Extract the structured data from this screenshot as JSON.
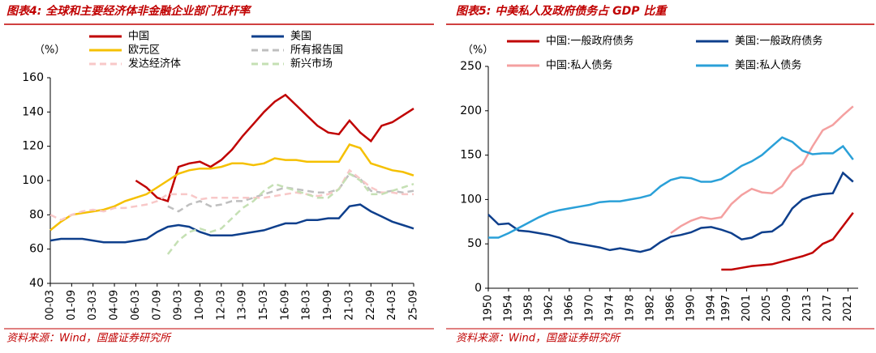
{
  "chart_data": [
    {
      "type": "line",
      "title": "图表4:  全球和主要经济体非金融企业部门杠杆率",
      "y_label": "（%）",
      "source": "资料来源：Wind，国盛证券研究所",
      "categories": [
        "00-03",
        null,
        "01-09",
        null,
        "03-03",
        null,
        "04-09",
        null,
        "06-03",
        null,
        "07-09",
        null,
        "09-03",
        null,
        "10-09",
        null,
        "12-03",
        null,
        "13-09",
        null,
        "15-03",
        null,
        "16-09",
        null,
        "18-03",
        null,
        "19-09",
        null,
        "21-03",
        null,
        "22-09",
        null,
        "24-03",
        null,
        "25-09"
      ],
      "ylim": [
        40,
        160
      ],
      "yticks": [
        40,
        60,
        80,
        100,
        120,
        140,
        160
      ],
      "series": [
        {
          "name": "中国",
          "color": "#c00000",
          "style": "solid",
          "values": [
            null,
            null,
            null,
            null,
            null,
            null,
            null,
            null,
            100,
            96,
            90,
            88,
            108,
            110,
            111,
            108,
            112,
            118,
            126,
            133,
            140,
            146,
            150,
            144,
            138,
            132,
            128,
            127,
            135,
            128,
            123,
            132,
            134,
            138,
            142
          ]
        },
        {
          "name": "美国",
          "color": "#0e3f8c",
          "style": "solid",
          "values": [
            65,
            66,
            66,
            66,
            65,
            64,
            64,
            64,
            65,
            66,
            70,
            73,
            74,
            73,
            70,
            68,
            68,
            68,
            69,
            70,
            71,
            73,
            75,
            75,
            77,
            77,
            78,
            78,
            85,
            86,
            82,
            79,
            76,
            74,
            72
          ]
        },
        {
          "name": "欧元区",
          "color": "#f5c000",
          "style": "solid",
          "values": [
            71,
            76,
            80,
            81,
            82,
            83,
            85,
            88,
            90,
            92,
            96,
            100,
            104,
            106,
            107,
            107,
            108,
            110,
            110,
            109,
            110,
            113,
            112,
            112,
            111,
            111,
            111,
            111,
            121,
            119,
            110,
            108,
            106,
            105,
            103
          ]
        },
        {
          "name": "所有报告国",
          "color": "#bfbfbf",
          "style": "dashed",
          "values": [
            null,
            null,
            null,
            null,
            null,
            null,
            null,
            null,
            null,
            null,
            null,
            85,
            82,
            86,
            88,
            85,
            86,
            88,
            88,
            90,
            92,
            94,
            96,
            95,
            94,
            93,
            93,
            95,
            104,
            101,
            94,
            93,
            94,
            93,
            94
          ]
        },
        {
          "name": "发达经济体",
          "color": "#f8c8c8",
          "style": "dashed",
          "values": [
            80,
            77,
            80,
            82,
            83,
            82,
            84,
            84,
            85,
            86,
            88,
            92,
            92,
            92,
            89,
            90,
            90,
            90,
            90,
            90,
            90,
            91,
            92,
            93,
            92,
            91,
            92,
            95,
            106,
            101,
            96,
            93,
            93,
            92,
            92
          ]
        },
        {
          "name": "新兴市场",
          "color": "#c5e0b4",
          "style": "dashed",
          "values": [
            null,
            null,
            null,
            null,
            null,
            null,
            null,
            null,
            null,
            null,
            null,
            57,
            65,
            70,
            72,
            70,
            72,
            78,
            84,
            88,
            94,
            98,
            96,
            94,
            92,
            90,
            90,
            95,
            104,
            100,
            92,
            92,
            94,
            96,
            98
          ]
        }
      ]
    },
    {
      "type": "line",
      "title": "图表5:  中美私人及政府债务占 GDP 比重",
      "y_label": "（%）",
      "source": "资料来源：Wind，国盛证券研究所",
      "x": [
        1950,
        1952,
        1954,
        1956,
        1958,
        1960,
        1962,
        1964,
        1966,
        1968,
        1970,
        1972,
        1974,
        1976,
        1978,
        1980,
        1982,
        1984,
        1986,
        1988,
        1990,
        1992,
        1994,
        1996,
        1998,
        2000,
        2002,
        2004,
        2006,
        2008,
        2010,
        2012,
        2014,
        2016,
        2018,
        2020,
        2022
      ],
      "xlim": [
        1950,
        2023
      ],
      "xticks": [
        1950,
        1954,
        1958,
        1962,
        1966,
        1970,
        1974,
        1978,
        1982,
        1986,
        1990,
        1994,
        1997,
        2001,
        2005,
        2009,
        2013,
        2017,
        2021
      ],
      "ylim": [
        0,
        250
      ],
      "yticks": [
        0,
        50,
        100,
        150,
        200,
        250
      ],
      "series": [
        {
          "name": "中国:一般政府债务",
          "color": "#c00000",
          "style": "solid",
          "values": [
            null,
            null,
            null,
            null,
            null,
            null,
            null,
            null,
            null,
            null,
            null,
            null,
            null,
            null,
            null,
            null,
            null,
            null,
            null,
            null,
            null,
            null,
            null,
            21,
            21,
            23,
            25,
            26,
            27,
            30,
            33,
            36,
            40,
            50,
            55,
            70,
            85
          ]
        },
        {
          "name": "美国:一般政府债务",
          "color": "#0e3f8c",
          "style": "solid",
          "values": [
            83,
            72,
            73,
            65,
            64,
            62,
            60,
            57,
            52,
            50,
            48,
            46,
            43,
            45,
            43,
            41,
            44,
            52,
            58,
            60,
            63,
            68,
            69,
            66,
            62,
            55,
            57,
            63,
            64,
            72,
            90,
            100,
            104,
            106,
            107,
            130,
            120
          ]
        },
        {
          "name": "中国:私人债务",
          "color": "#f4a0a0",
          "style": "solid",
          "values": [
            null,
            null,
            null,
            null,
            null,
            null,
            null,
            null,
            null,
            null,
            null,
            null,
            null,
            null,
            null,
            null,
            null,
            null,
            62,
            70,
            76,
            80,
            78,
            80,
            95,
            105,
            112,
            108,
            107,
            115,
            132,
            140,
            160,
            178,
            184,
            195,
            205
          ]
        },
        {
          "name": "美国:私人债务",
          "color": "#2aa0d8",
          "style": "solid",
          "values": [
            57,
            57,
            62,
            68,
            74,
            80,
            85,
            88,
            90,
            92,
            94,
            97,
            98,
            98,
            100,
            102,
            105,
            115,
            122,
            125,
            124,
            120,
            120,
            123,
            130,
            138,
            143,
            150,
            160,
            170,
            165,
            155,
            151,
            152,
            152,
            160,
            145
          ]
        }
      ]
    }
  ]
}
